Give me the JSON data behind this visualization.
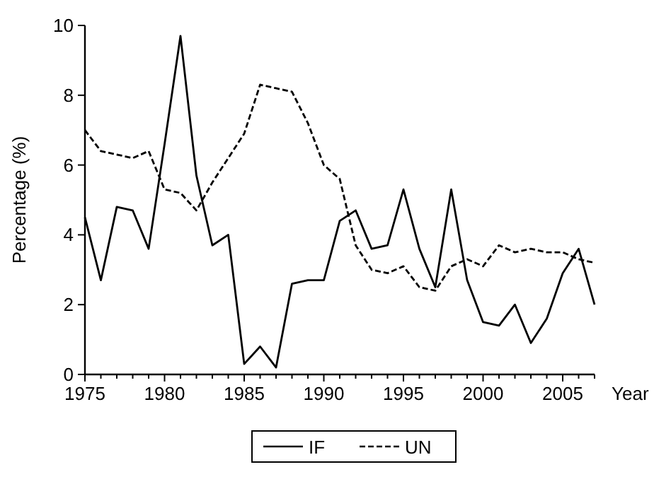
{
  "chart_data": {
    "type": "line",
    "xlabel": "Year",
    "ylabel": "Percentage (%)",
    "x": [
      1975,
      1976,
      1977,
      1978,
      1979,
      1980,
      1981,
      1982,
      1983,
      1984,
      1985,
      1986,
      1987,
      1988,
      1989,
      1990,
      1991,
      1992,
      1993,
      1994,
      1995,
      1996,
      1997,
      1998,
      1999,
      2000,
      2001,
      2002,
      2003,
      2004,
      2005,
      2006,
      2007
    ],
    "series": [
      {
        "name": "IF",
        "color": "#000000",
        "line_style": "solid",
        "values": [
          4.5,
          2.7,
          4.8,
          4.7,
          3.6,
          6.6,
          9.7,
          5.7,
          3.7,
          4.0,
          0.3,
          0.8,
          0.2,
          2.6,
          2.7,
          2.7,
          4.4,
          4.7,
          3.6,
          3.7,
          5.3,
          3.6,
          2.5,
          5.3,
          2.7,
          1.5,
          1.4,
          2.0,
          0.9,
          1.6,
          2.9,
          3.6,
          2.0
        ]
      },
      {
        "name": "UN",
        "color": "#000000",
        "line_style": "dashed",
        "values": [
          7.0,
          6.4,
          6.3,
          6.2,
          6.4,
          5.3,
          5.2,
          4.7,
          5.5,
          6.2,
          6.9,
          8.3,
          8.2,
          8.1,
          7.2,
          6.0,
          5.6,
          3.7,
          3.0,
          2.9,
          3.1,
          2.5,
          2.4,
          3.1,
          3.3,
          3.1,
          3.7,
          3.5,
          3.6,
          3.5,
          3.5,
          3.3,
          3.2
        ]
      }
    ],
    "xlim": [
      1975,
      2007
    ],
    "xticks": [
      1975,
      {
        "value": 1976,
        "label": null
      },
      {
        "value": 1977,
        "label": null
      },
      {
        "value": 1978,
        "label": null
      },
      {
        "value": 1979,
        "label": null
      },
      1980,
      {
        "value": 1981,
        "label": null
      },
      {
        "value": 1982,
        "label": null
      },
      {
        "value": 1983,
        "label": null
      },
      {
        "value": 1984,
        "label": null
      },
      1985,
      {
        "value": 1986,
        "label": null
      },
      {
        "value": 1987,
        "label": null
      },
      {
        "value": 1988,
        "label": null
      },
      {
        "value": 1989,
        "label": null
      },
      1990,
      {
        "value": 1991,
        "label": null
      },
      {
        "value": 1992,
        "label": null
      },
      {
        "value": 1993,
        "label": null
      },
      {
        "value": 1994,
        "label": null
      },
      1995,
      {
        "value": 1996,
        "label": null
      },
      {
        "value": 1997,
        "label": null
      },
      {
        "value": 1998,
        "label": null
      },
      {
        "value": 1999,
        "label": null
      },
      2000,
      {
        "value": 2001,
        "label": null
      },
      {
        "value": 2002,
        "label": null
      },
      {
        "value": 2003,
        "label": null
      },
      {
        "value": 2004,
        "label": null
      },
      2005,
      {
        "value": 2006,
        "label": null
      },
      {
        "value": 2007,
        "label": null
      }
    ],
    "ylim": [
      0,
      10
    ],
    "yticks": [
      0,
      2,
      4,
      6,
      8,
      10
    ],
    "grid": false,
    "legend": "bottom",
    "marker": "none"
  }
}
